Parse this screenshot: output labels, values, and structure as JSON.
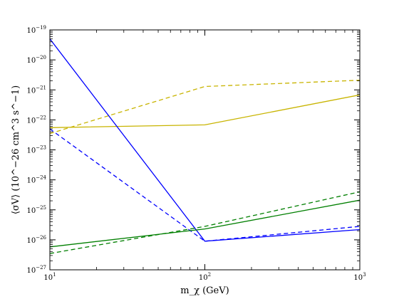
{
  "chart_data": {
    "type": "line",
    "title": "",
    "xlabel": "m_χ (GeV)",
    "ylabel": "⟨σV⟩ (10^−26 cm^3 s^−1)",
    "x_scale": "log",
    "y_scale": "log",
    "xlim": [
      10,
      1000
    ],
    "ylim": [
      1e-27,
      1e-19
    ],
    "grid": false,
    "x_ticks": [
      {
        "value": 10,
        "base": "10",
        "exp": "1"
      },
      {
        "value": 100,
        "base": "10",
        "exp": "2"
      },
      {
        "value": 1000,
        "base": "10",
        "exp": "3"
      }
    ],
    "y_ticks": [
      {
        "value": 1e-27,
        "base": "10",
        "exp": "−27"
      },
      {
        "value": 1e-26,
        "base": "10",
        "exp": "−26"
      },
      {
        "value": 1e-25,
        "base": "10",
        "exp": "−25"
      },
      {
        "value": 1e-24,
        "base": "10",
        "exp": "−24"
      },
      {
        "value": 1e-23,
        "base": "10",
        "exp": "−23"
      },
      {
        "value": 1e-22,
        "base": "10",
        "exp": "−22"
      },
      {
        "value": 1e-21,
        "base": "10",
        "exp": "−21"
      },
      {
        "value": 1e-20,
        "base": "10",
        "exp": "−20"
      },
      {
        "value": 1e-19,
        "base": "10",
        "exp": "−19"
      }
    ],
    "series": [
      {
        "color": "#c8b400",
        "dash": "solid",
        "x": [
          10,
          100,
          1000
        ],
        "y": [
          5.5e-23,
          6.8e-23,
          6.8e-22
        ]
      },
      {
        "color": "#c8b400",
        "dash": "dashed",
        "x": [
          10,
          100,
          1000
        ],
        "y": [
          3.5e-23,
          1.3e-21,
          2.1e-21
        ]
      },
      {
        "color": "#0000ff",
        "dash": "solid",
        "x": [
          10,
          100,
          1000
        ],
        "y": [
          5e-20,
          9e-27,
          2.2e-26
        ]
      },
      {
        "color": "#0000ff",
        "dash": "dashed",
        "x": [
          10,
          100,
          1000
        ],
        "y": [
          5e-23,
          9e-27,
          2.8e-26
        ]
      },
      {
        "color": "#007f00",
        "dash": "solid",
        "x": [
          10,
          100,
          1000
        ],
        "y": [
          5.8e-27,
          2.3e-26,
          2.1e-25
        ]
      },
      {
        "color": "#007f00",
        "dash": "dashed",
        "x": [
          10,
          100,
          1000
        ],
        "y": [
          3.5e-27,
          2.8e-26,
          4e-25
        ]
      }
    ]
  }
}
